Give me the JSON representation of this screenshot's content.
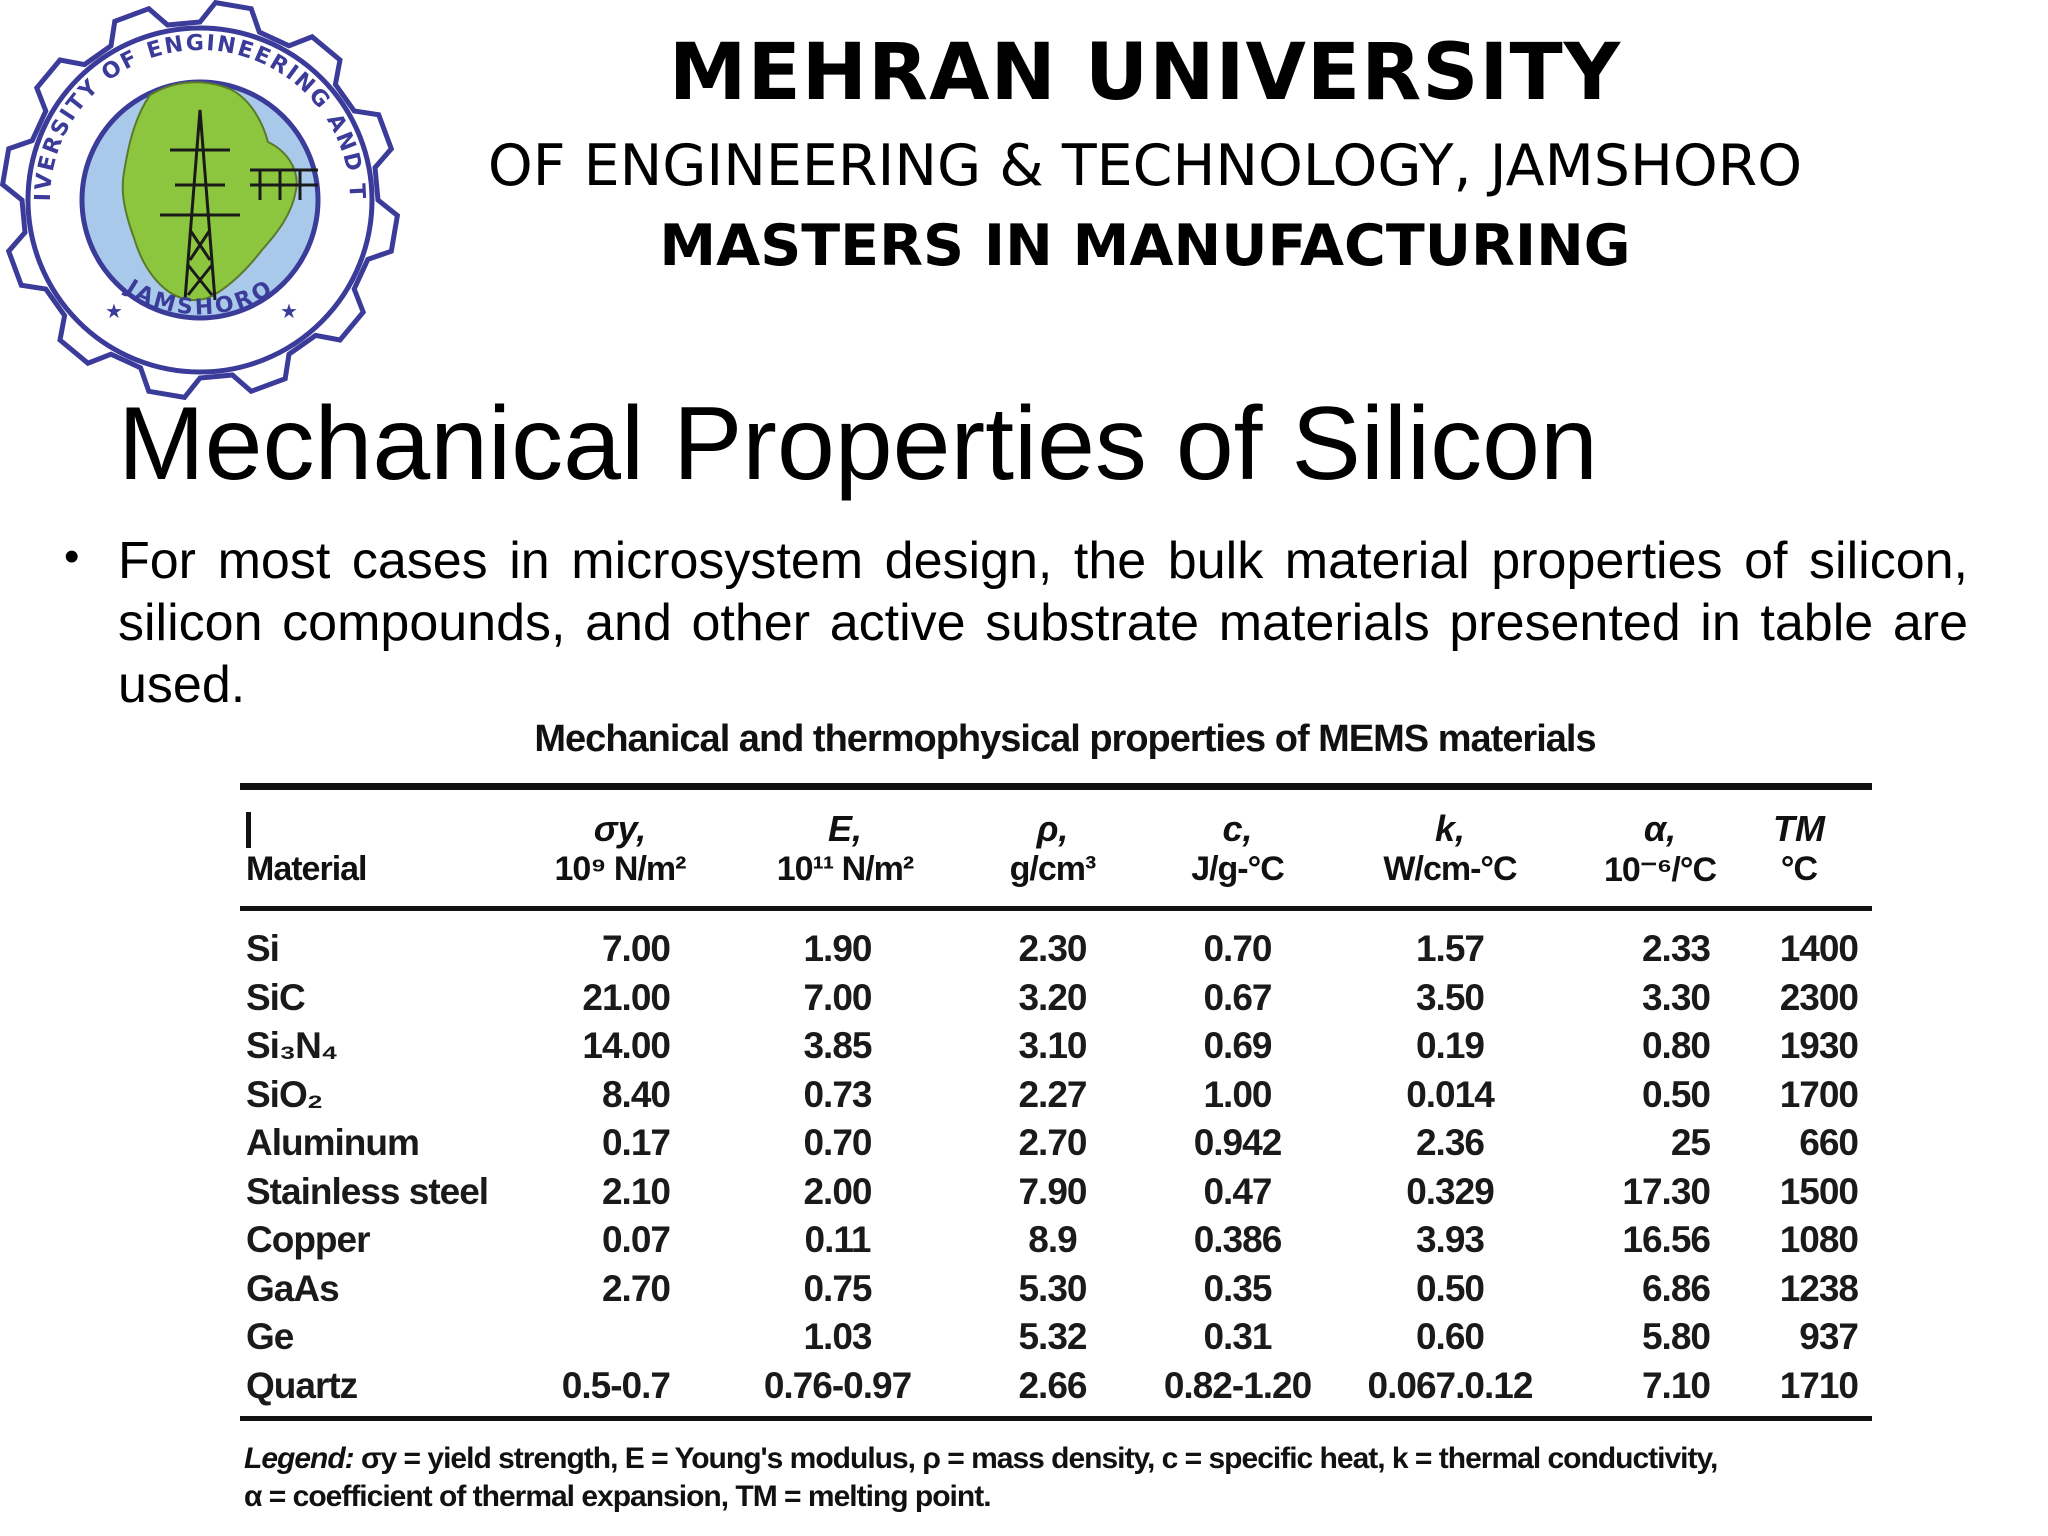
{
  "header": {
    "university": "MEHRAN UNIVERSITY",
    "subtitle": "OF ENGINEERING & TECHNOLOGY, JAMSHORO",
    "program": "MASTERS IN MANUFACTURING"
  },
  "logo": {
    "ring_text": "MEHRAN UNIVERSITY OF ENGINEERING AND TECHNOLOGY",
    "bottom_text": "JAMSHORO",
    "icon": "university-seal-icon",
    "colors": {
      "outline": "#3b3b9a",
      "map": "#8cc63f",
      "water": "#a9c9ea"
    }
  },
  "slide": {
    "title": "Mechanical Properties of Silicon",
    "bullet": "For most cases in microsystem design, the bulk material properties of silicon, silicon compounds, and other active substrate materials presented in table are used."
  },
  "table": {
    "caption": "Mechanical and thermophysical properties of MEMS materials",
    "columns": [
      {
        "symbol": "",
        "unit": "Material"
      },
      {
        "symbol": "σy,",
        "unit": "10⁹ N/m²"
      },
      {
        "symbol": "E,",
        "unit": "10¹¹ N/m²"
      },
      {
        "symbol": "ρ,",
        "unit": "g/cm³"
      },
      {
        "symbol": "c,",
        "unit": "J/g-°C"
      },
      {
        "symbol": "k,",
        "unit": "W/cm-°C"
      },
      {
        "symbol": "α,",
        "unit": "10⁻⁶/°C"
      },
      {
        "symbol": "TM",
        "unit": "°C"
      }
    ],
    "rows": [
      {
        "material": "Si",
        "sy": "7.00",
        "e": "1.90",
        "rho": "2.30",
        "c": "0.70",
        "k": "1.57",
        "alpha": "2.33",
        "tm": "1400"
      },
      {
        "material": "SiC",
        "sy": "21.00",
        "e": "7.00",
        "rho": "3.20",
        "c": "0.67",
        "k": "3.50",
        "alpha": "3.30",
        "tm": "2300"
      },
      {
        "material": "Si₃N₄",
        "sy": "14.00",
        "e": "3.85",
        "rho": "3.10",
        "c": "0.69",
        "k": "0.19",
        "alpha": "0.80",
        "tm": "1930"
      },
      {
        "material": "SiO₂",
        "sy": "8.40",
        "e": "0.73",
        "rho": "2.27",
        "c": "1.00",
        "k": "0.014",
        "alpha": "0.50",
        "tm": "1700"
      },
      {
        "material": "Aluminum",
        "sy": "0.17",
        "e": "0.70",
        "rho": "2.70",
        "c": "0.942",
        "k": "2.36",
        "alpha": "25",
        "tm": "660"
      },
      {
        "material": "Stainless steel",
        "sy": "2.10",
        "e": "2.00",
        "rho": "7.90",
        "c": "0.47",
        "k": "0.329",
        "alpha": "17.30",
        "tm": "1500"
      },
      {
        "material": "Copper",
        "sy": "0.07",
        "e": "0.11",
        "rho": "8.9",
        "c": "0.386",
        "k": "3.93",
        "alpha": "16.56",
        "tm": "1080"
      },
      {
        "material": "GaAs",
        "sy": "2.70",
        "e": "0.75",
        "rho": "5.30",
        "c": "0.35",
        "k": "0.50",
        "alpha": "6.86",
        "tm": "1238"
      },
      {
        "material": "Ge",
        "sy": "",
        "e": "1.03",
        "rho": "5.32",
        "c": "0.31",
        "k": "0.60",
        "alpha": "5.80",
        "tm": "937"
      },
      {
        "material": "Quartz",
        "sy": "0.5-0.7",
        "e": "0.76-0.97",
        "rho": "2.66",
        "c": "0.82-1.20",
        "k": "0.067.0.12",
        "alpha": "7.10",
        "tm": "1710"
      }
    ],
    "legend": {
      "lead": "Legend:",
      "line1": "σy = yield strength, E = Young's modulus, ρ = mass density, c = specific heat, k = thermal conductivity,",
      "line2": "α = coefficient of thermal expansion, TM = melting point."
    }
  }
}
